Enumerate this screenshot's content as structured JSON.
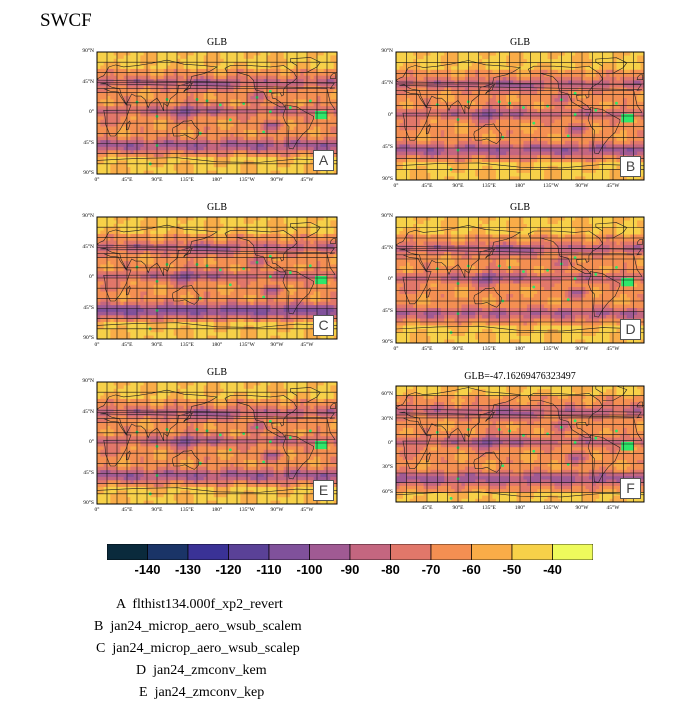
{
  "figure_title": "SWCF",
  "chart_data": {
    "type": "heatmap",
    "title": "SWCF",
    "colorbar": {
      "labels": [
        "-140",
        "-130",
        "-120",
        "-110",
        "-100",
        "-90",
        "-80",
        "-70",
        "-60",
        "-50",
        "-40"
      ],
      "colors": [
        "#0a2a3c",
        "#1a3467",
        "#3a3296",
        "#5a4197",
        "#80519b",
        "#a05a93",
        "#c46680",
        "#e1776a",
        "#f48f52",
        "#f9ac48",
        "#f7d149",
        "#eefb5c"
      ]
    },
    "panels": [
      {
        "tag": "A",
        "title": "GLB",
        "lat_labels": [
          "90°N",
          "45°N",
          "0°",
          "45°S",
          "90°S"
        ],
        "lon_labels": [
          "0°",
          "45°E",
          "90°E",
          "135°E",
          "180°",
          "135°W",
          "90°W",
          "45°W"
        ]
      },
      {
        "tag": "B",
        "title": "GLB",
        "lat_labels": [
          "90°N",
          "45°N",
          "0°",
          "45°S",
          "90°S"
        ],
        "lon_labels": [
          "0°",
          "45°E",
          "90°E",
          "135°E",
          "180°",
          "135°W",
          "90°W",
          "45°W"
        ]
      },
      {
        "tag": "C",
        "title": "GLB",
        "lat_labels": [
          "90°N",
          "45°N",
          "0°",
          "45°S",
          "90°S"
        ],
        "lon_labels": [
          "0°",
          "45°E",
          "90°E",
          "135°E",
          "180°",
          "135°W",
          "90°W",
          "45°W"
        ]
      },
      {
        "tag": "D",
        "title": "GLB",
        "lat_labels": [
          "90°N",
          "45°N",
          "0°",
          "45°S",
          "90°S"
        ],
        "lon_labels": [
          "0°",
          "45°E",
          "90°E",
          "135°E",
          "180°",
          "135°W",
          "90°W",
          "45°W"
        ]
      },
      {
        "tag": "E",
        "title": "GLB",
        "lat_labels": [
          "90°N",
          "45°N",
          "0°",
          "45°S",
          "90°S"
        ],
        "lon_labels": [
          "0°",
          "45°E",
          "90°E",
          "135°E",
          "180°",
          "135°W",
          "90°W",
          "45°W"
        ]
      },
      {
        "tag": "F",
        "title": "GLB=-47.16269476323497",
        "lat_labels": [
          "60°N",
          "30°N",
          "0°",
          "30°S",
          "60°S"
        ],
        "lon_labels": [
          "45°E",
          "90°E",
          "135°E",
          "180°",
          "135°W",
          "90°W",
          "45°W"
        ]
      }
    ]
  },
  "legend": [
    {
      "tag": "A",
      "name": "flthist134.000f_xp2_revert"
    },
    {
      "tag": "B",
      "name": "jan24_microp_aero_wsub_scalem"
    },
    {
      "tag": "C",
      "name": "jan24_microp_aero_wsub_scalep"
    },
    {
      "tag": "D",
      "name": "jan24_zmconv_kem"
    },
    {
      "tag": "E",
      "name": "jan24_zmconv_kep"
    }
  ]
}
